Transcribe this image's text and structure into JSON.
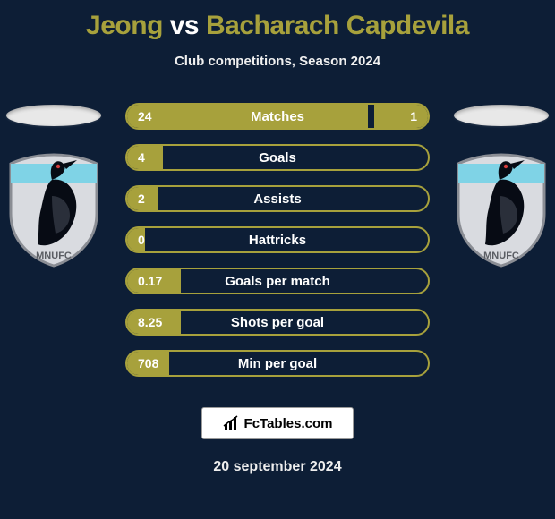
{
  "title": {
    "player1": "Jeong",
    "vs": "vs",
    "player2": "Bacharach Capdevila",
    "player1_color": "#a7a13c",
    "vs_color": "#ffffff",
    "player2_color": "#a7a13c",
    "fontsize": 30
  },
  "subtitle": "Club competitions, Season 2024",
  "background_color": "#0d1e36",
  "bar_style": {
    "border_color": "#a7a13c",
    "fill_color": "#a7a13c",
    "border_radius": 15,
    "height": 30,
    "gap": 16,
    "label_fontsize": 15,
    "value_fontsize": 14,
    "text_color": "#ffffff"
  },
  "stats": [
    {
      "label": "Matches",
      "left_val": "24",
      "right_val": "1",
      "left_pct": 80,
      "right_pct": 18
    },
    {
      "label": "Goals",
      "left_val": "4",
      "right_val": "",
      "left_pct": 12,
      "right_pct": 0
    },
    {
      "label": "Assists",
      "left_val": "2",
      "right_val": "",
      "left_pct": 10,
      "right_pct": 0
    },
    {
      "label": "Hattricks",
      "left_val": "0",
      "right_val": "",
      "left_pct": 6,
      "right_pct": 0
    },
    {
      "label": "Goals per match",
      "left_val": "0.17",
      "right_val": "",
      "left_pct": 18,
      "right_pct": 0
    },
    {
      "label": "Shots per goal",
      "left_val": "8.25",
      "right_val": "",
      "left_pct": 18,
      "right_pct": 0
    },
    {
      "label": "Min per goal",
      "left_val": "708",
      "right_val": "",
      "left_pct": 14,
      "right_pct": 0
    }
  ],
  "crest": {
    "shield_fill": "#d9dbe0",
    "shield_stroke": "#8a8d94",
    "stripe_color": "#7fd3e6",
    "bird_color": "#070b14",
    "eye_color": "#d43c3c",
    "text": "MNUFC",
    "text_color": "#5a5d63"
  },
  "ellipse_color": "#e8e8e8",
  "brand": {
    "text": "FcTables.com",
    "bg": "#ffffff",
    "border": "#999999",
    "icon_color": "#000000"
  },
  "date": "20 september 2024"
}
